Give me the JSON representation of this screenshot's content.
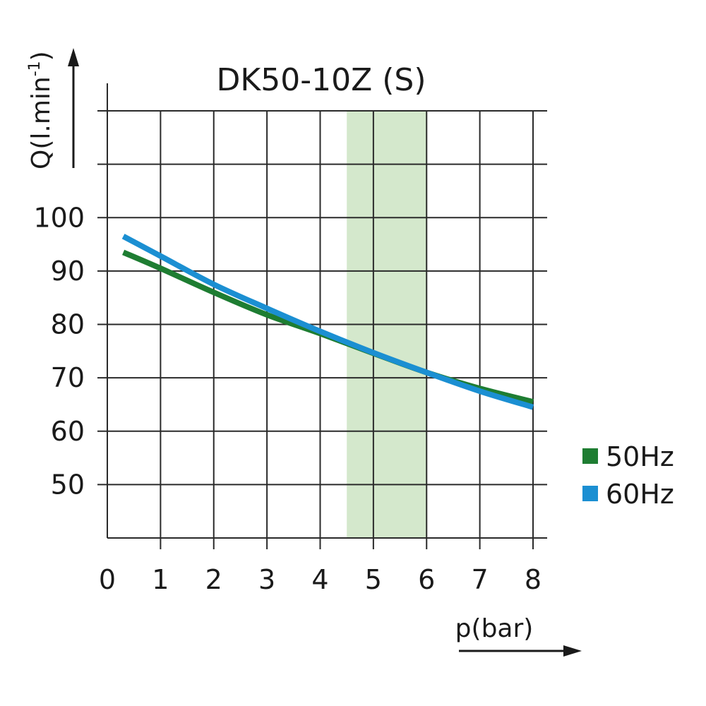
{
  "chart_data": {
    "type": "line",
    "title": "DK50-10Z (S)",
    "xlabel": "p(bar)",
    "ylabel_main": "Q(l.min",
    "ylabel_sup": "-1",
    "ylabel_close": ")",
    "xlim": [
      0,
      8
    ],
    "ylim": [
      40,
      120
    ],
    "x_ticks": [
      0,
      1,
      2,
      3,
      4,
      5,
      6,
      7,
      8
    ],
    "x_tick_labels": [
      "0",
      "1",
      "2",
      "3",
      "4",
      "5",
      "6",
      "7",
      "8"
    ],
    "y_ticks": [
      50,
      60,
      70,
      80,
      90,
      100
    ],
    "y_tick_labels": [
      "50",
      "60",
      "70",
      "80",
      "90",
      "100"
    ],
    "grid": true,
    "highlight_band": {
      "x_from": 4.5,
      "x_to": 6,
      "color": "#d4e8cc"
    },
    "legend_position": "right",
    "series": [
      {
        "name": "50Hz",
        "color": "#1e7d32",
        "points": [
          [
            0.3,
            93.5
          ],
          [
            1,
            90.5
          ],
          [
            2,
            86
          ],
          [
            3,
            81.8
          ],
          [
            4,
            78.3
          ],
          [
            5,
            74.6
          ],
          [
            6,
            71
          ],
          [
            7,
            68
          ],
          [
            8,
            65.5
          ]
        ]
      },
      {
        "name": "60Hz",
        "color": "#1b8fd2",
        "points": [
          [
            0.3,
            96.5
          ],
          [
            1,
            92.8
          ],
          [
            2,
            87.5
          ],
          [
            3,
            83
          ],
          [
            4,
            78.7
          ],
          [
            5,
            74.7
          ],
          [
            6,
            71
          ],
          [
            7,
            67.5
          ],
          [
            8,
            64.5
          ]
        ]
      }
    ]
  }
}
